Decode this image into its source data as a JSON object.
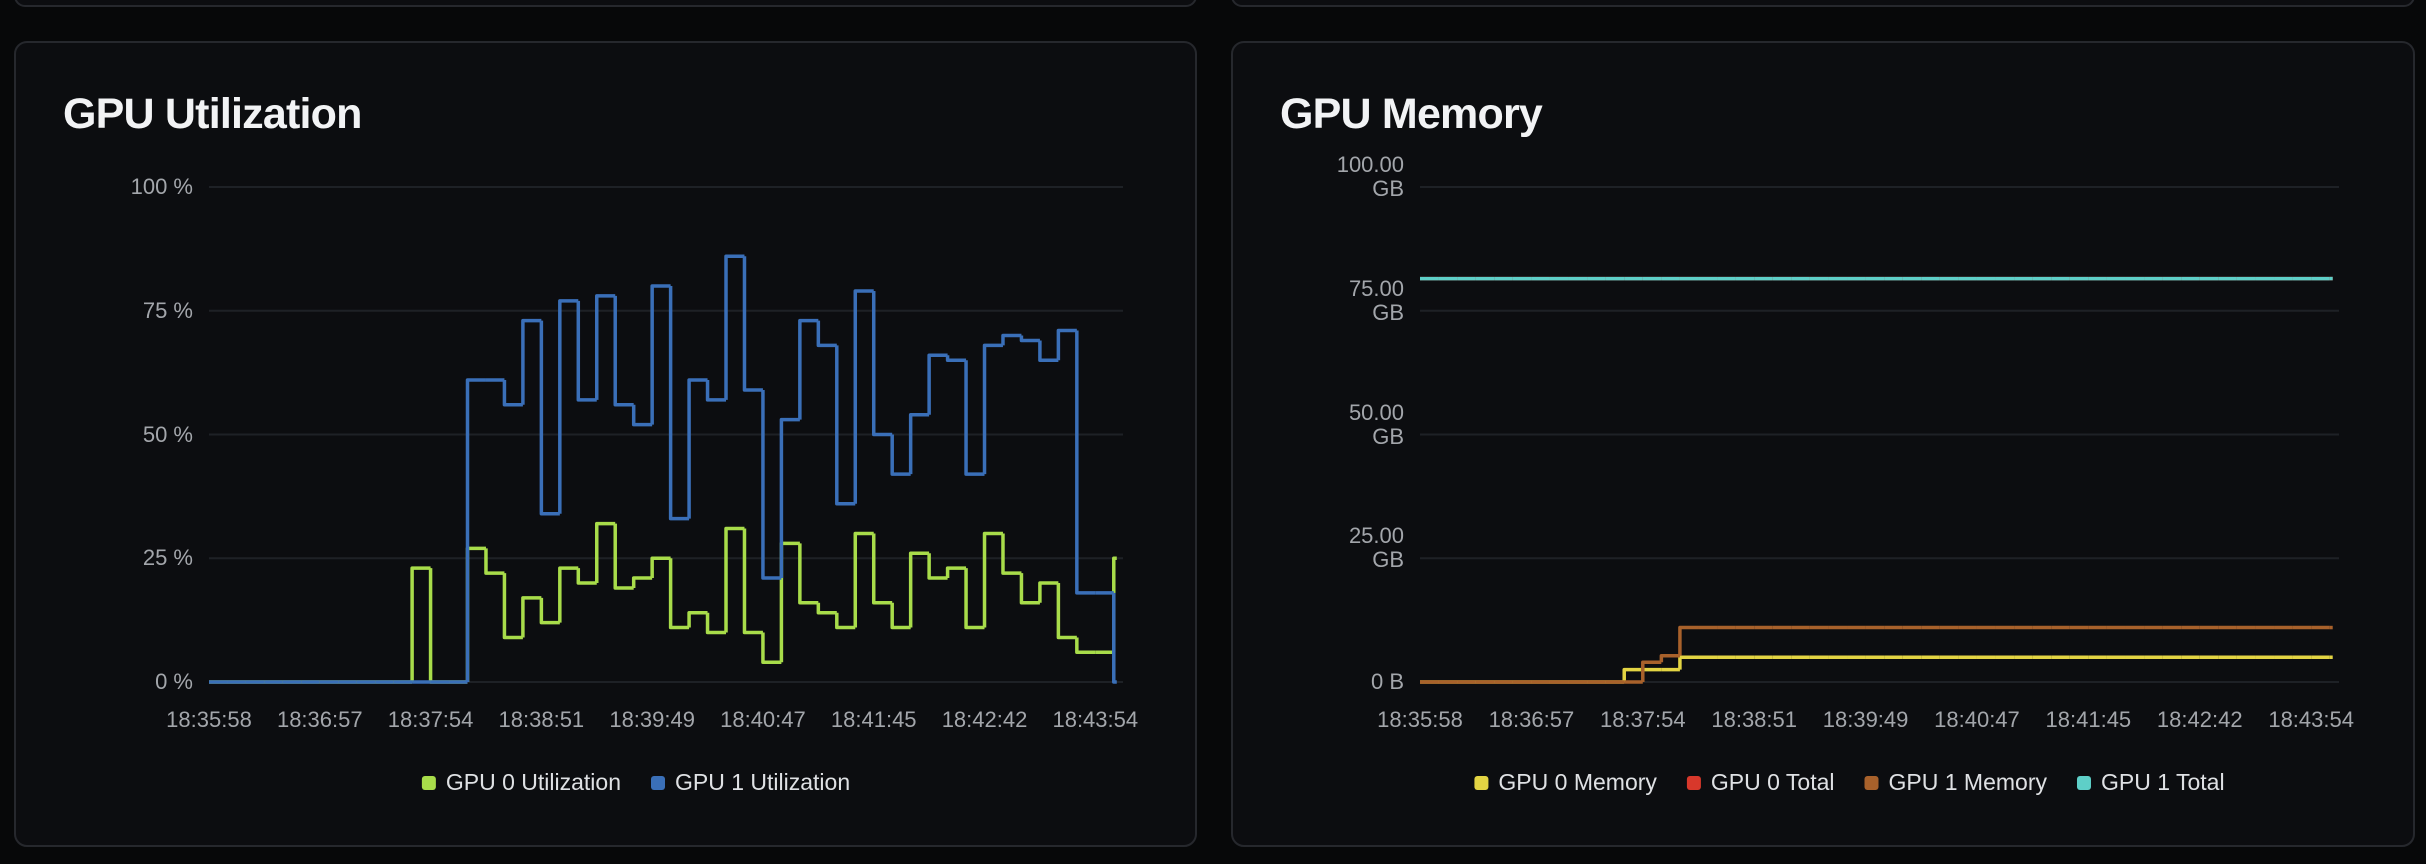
{
  "charts": [
    {
      "chart_data": {
        "type": "line",
        "title": "GPU Utilization",
        "categories": [
          "18:35:58",
          null,
          null,
          null,
          null,
          null,
          "18:36:57",
          null,
          null,
          null,
          null,
          null,
          "18:37:54",
          null,
          null,
          null,
          null,
          null,
          "18:38:51",
          null,
          null,
          null,
          null,
          null,
          "18:39:49",
          null,
          null,
          null,
          null,
          null,
          "18:40:47",
          null,
          null,
          null,
          null,
          null,
          "18:41:45",
          null,
          null,
          null,
          null,
          null,
          "18:42:42",
          null,
          null,
          null,
          null,
          null,
          "18:43:54",
          null
        ],
        "ylim": [
          0,
          100
        ],
        "yticks": [
          {
            "value": 0,
            "label": "0 %"
          },
          {
            "value": 25,
            "label": "25 %"
          },
          {
            "value": 50,
            "label": "50 %"
          },
          {
            "value": 75,
            "label": "75 %"
          },
          {
            "value": 100,
            "label": "100 %"
          }
        ],
        "grid": true,
        "legend": "bottom",
        "series": [
          {
            "name": "GPU 0 Utilization",
            "color": "#a8dc4a",
            "values": [
              0,
              0,
              0,
              0,
              0,
              0,
              0,
              0,
              0,
              0,
              0,
              23,
              0,
              0,
              27,
              22,
              9,
              17,
              12,
              23,
              20,
              32,
              19,
              21,
              25,
              11,
              14,
              10,
              31,
              10,
              4,
              28,
              16,
              14,
              11,
              30,
              16,
              11,
              26,
              21,
              23,
              11,
              30,
              22,
              16,
              20,
              9,
              6,
              6,
              25
            ]
          },
          {
            "name": "GPU 1 Utilization",
            "color": "#3a6fb8",
            "values": [
              0,
              0,
              0,
              0,
              0,
              0,
              0,
              0,
              0,
              0,
              0,
              0,
              0,
              0,
              61,
              61,
              56,
              73,
              34,
              77,
              57,
              78,
              56,
              52,
              80,
              33,
              61,
              57,
              86,
              59,
              21,
              53,
              73,
              68,
              36,
              79,
              50,
              42,
              54,
              66,
              65,
              42,
              68,
              70,
              69,
              65,
              71,
              18,
              18,
              0
            ]
          }
        ]
      }
    },
    {
      "chart_data": {
        "type": "line",
        "title": "GPU Memory",
        "categories": [
          "18:35:58",
          null,
          null,
          null,
          null,
          null,
          "18:36:57",
          null,
          null,
          null,
          null,
          null,
          "18:37:54",
          null,
          null,
          null,
          null,
          null,
          "18:38:51",
          null,
          null,
          null,
          null,
          null,
          "18:39:49",
          null,
          null,
          null,
          null,
          null,
          "18:40:47",
          null,
          null,
          null,
          null,
          null,
          "18:41:45",
          null,
          null,
          null,
          null,
          null,
          "18:42:42",
          null,
          null,
          null,
          null,
          null,
          "18:43:54",
          null
        ],
        "ylim": [
          0,
          100
        ],
        "yticks": [
          {
            "value": 0,
            "label": "0 B"
          },
          {
            "value": 25,
            "label": "25.00 GB"
          },
          {
            "value": 50,
            "label": "50.00 GB"
          },
          {
            "value": 75,
            "label": "75.00 GB"
          },
          {
            "value": 100,
            "label": "100.00 GB"
          }
        ],
        "grid": true,
        "legend": "bottom",
        "series": [
          {
            "name": "GPU 0 Memory",
            "color": "#e3d443",
            "values": [
              0,
              0,
              0,
              0,
              0,
              0,
              0,
              0,
              0,
              0,
              0,
              2.5,
              2.5,
              2.5,
              5,
              5,
              5,
              5,
              5,
              5,
              5,
              5,
              5,
              5,
              5,
              5,
              5,
              5,
              5,
              5,
              5,
              5,
              5,
              5,
              5,
              5,
              5,
              5,
              5,
              5,
              5,
              5,
              5,
              5,
              5,
              5,
              5,
              5,
              5,
              5
            ]
          },
          {
            "name": "GPU 0 Total",
            "color": "#d8382b",
            "values": [
              81.5,
              81.5,
              81.5,
              81.5,
              81.5,
              81.5,
              81.5,
              81.5,
              81.5,
              81.5,
              81.5,
              81.5,
              81.5,
              81.5,
              81.5,
              81.5,
              81.5,
              81.5,
              81.5,
              81.5,
              81.5,
              81.5,
              81.5,
              81.5,
              81.5,
              81.5,
              81.5,
              81.5,
              81.5,
              81.5,
              81.5,
              81.5,
              81.5,
              81.5,
              81.5,
              81.5,
              81.5,
              81.5,
              81.5,
              81.5,
              81.5,
              81.5,
              81.5,
              81.5,
              81.5,
              81.5,
              81.5,
              81.5,
              81.5,
              81.5
            ]
          },
          {
            "name": "GPU 1 Memory",
            "color": "#a8612b",
            "values": [
              0,
              0,
              0,
              0,
              0,
              0,
              0,
              0,
              0,
              0,
              0,
              0,
              4,
              5.3,
              11,
              11,
              11,
              11,
              11,
              11,
              11,
              11,
              11,
              11,
              11,
              11,
              11,
              11,
              11,
              11,
              11,
              11,
              11,
              11,
              11,
              11,
              11,
              11,
              11,
              11,
              11,
              11,
              11,
              11,
              11,
              11,
              11,
              11,
              11,
              11
            ]
          },
          {
            "name": "GPU 1 Total",
            "color": "#5ecfc8",
            "values": [
              81.5,
              81.5,
              81.5,
              81.5,
              81.5,
              81.5,
              81.5,
              81.5,
              81.5,
              81.5,
              81.5,
              81.5,
              81.5,
              81.5,
              81.5,
              81.5,
              81.5,
              81.5,
              81.5,
              81.5,
              81.5,
              81.5,
              81.5,
              81.5,
              81.5,
              81.5,
              81.5,
              81.5,
              81.5,
              81.5,
              81.5,
              81.5,
              81.5,
              81.5,
              81.5,
              81.5,
              81.5,
              81.5,
              81.5,
              81.5,
              81.5,
              81.5,
              81.5,
              81.5,
              81.5,
              81.5,
              81.5,
              81.5,
              81.5,
              81.5
            ]
          }
        ]
      }
    }
  ]
}
